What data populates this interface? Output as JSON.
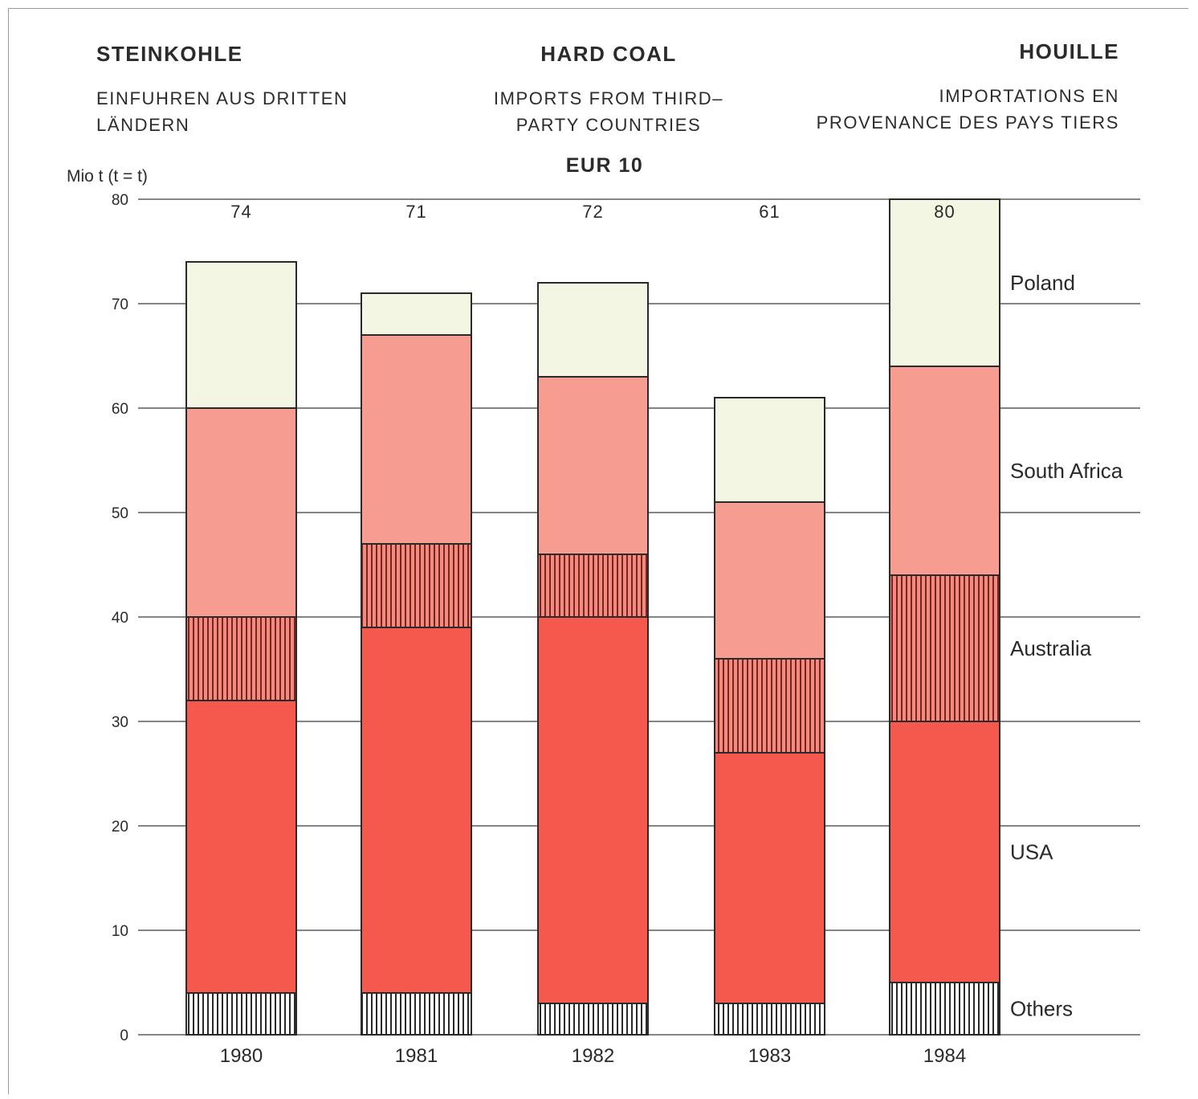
{
  "header": {
    "de_title": "STEINKOHLE",
    "de_subtitle_line1": "EINFUHREN AUS DRITTEN",
    "de_subtitle_line2": "LÄNDERN",
    "en_title": "HARD COAL",
    "en_subtitle_line1": "IMPORTS FROM THIRD–",
    "en_subtitle_line2": "PARTY COUNTRIES",
    "region": "EUR  10",
    "fr_title": "HOUILLE",
    "fr_subtitle_line1": "IMPORTATIONS EN",
    "fr_subtitle_line2": "PROVENANCE DES PAYS TIERS"
  },
  "chart_data": {
    "type": "bar",
    "stacked": true,
    "categories": [
      "1980",
      "1981",
      "1982",
      "1983",
      "1984"
    ],
    "ylabel": "Mio t (t = t)",
    "ylim": [
      0,
      80
    ],
    "yticks": [
      0,
      10,
      20,
      30,
      40,
      50,
      60,
      70,
      80
    ],
    "grid": true,
    "legend_position": "right, labels beside the 1984 bar",
    "totals": [
      74,
      71,
      72,
      61,
      80
    ],
    "series": [
      {
        "name": "Others",
        "values": [
          4,
          4,
          3,
          3,
          5
        ],
        "color": "#ffffff",
        "pattern": "vertical-hatch-black"
      },
      {
        "name": "USA",
        "values": [
          28,
          35,
          37,
          24,
          25
        ],
        "color": "#f5594d"
      },
      {
        "name": "Australia",
        "values": [
          8,
          8,
          6,
          9,
          14
        ],
        "color": "#f28a80",
        "pattern": "vertical-hatch"
      },
      {
        "name": "South Africa",
        "values": [
          20,
          20,
          17,
          15,
          20
        ],
        "color": "#f79c90"
      },
      {
        "name": "Poland",
        "values": [
          14,
          4,
          9,
          10,
          16
        ],
        "color": "#f3f6e2"
      }
    ]
  },
  "colors": {
    "grid": "#3a3a3a",
    "bar_outline": "#2a2a2a",
    "text": "#2a2a2a"
  }
}
